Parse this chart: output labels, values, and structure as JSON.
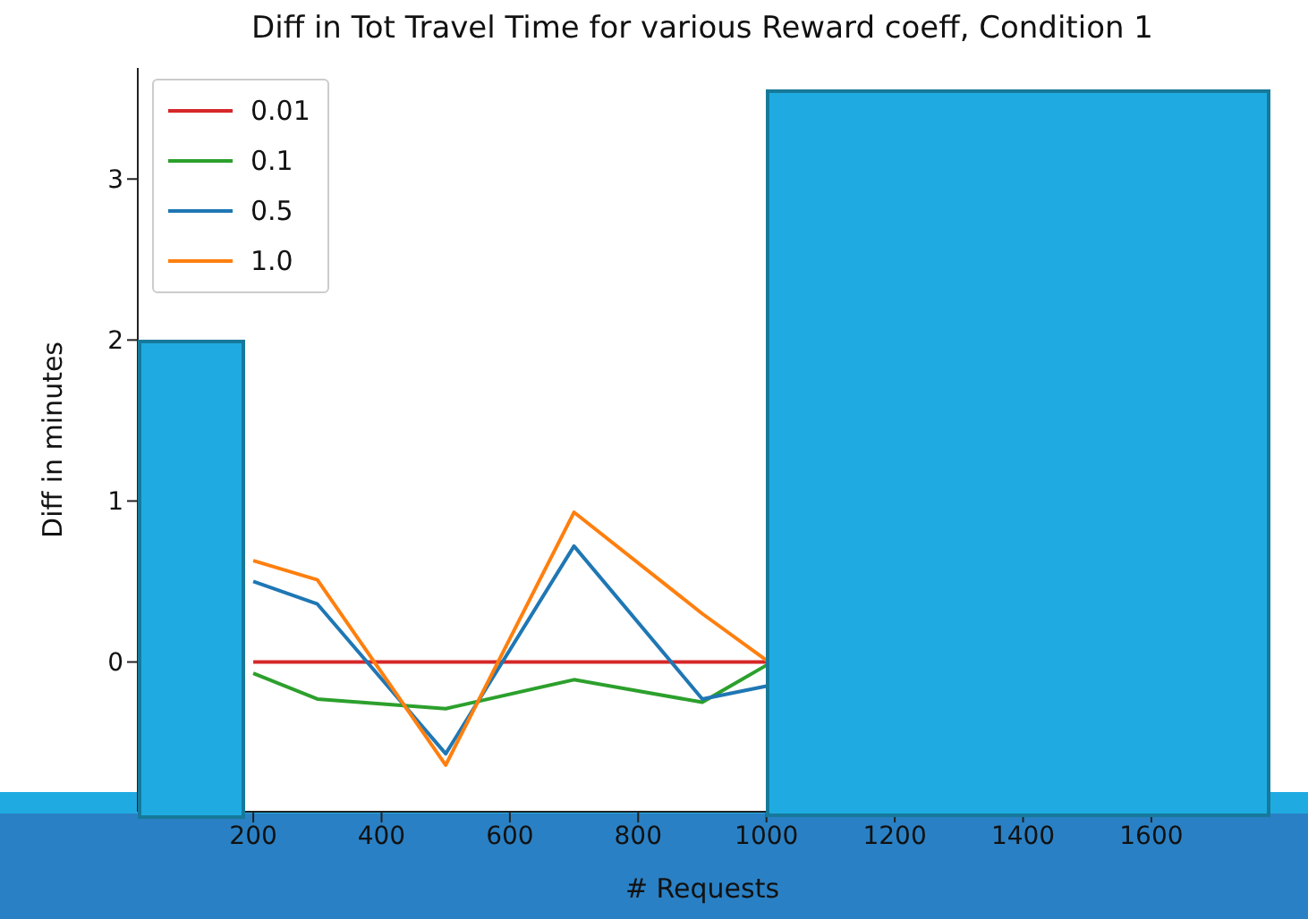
{
  "chart_data": {
    "type": "line",
    "title": "Diff in Tot Travel Time for various Reward coeff, Condition 1",
    "xlabel": "# Requests",
    "ylabel": "Diff in minutes",
    "x": [
      200,
      300,
      500,
      700,
      900,
      1000
    ],
    "series": [
      {
        "name": "0.01",
        "color": "#d62728",
        "values": [
          0,
          0,
          0,
          0,
          0,
          0
        ]
      },
      {
        "name": "0.1",
        "color": "#2ca02c",
        "values": [
          -0.07,
          -0.23,
          -0.29,
          -0.11,
          -0.25,
          -0.02
        ]
      },
      {
        "name": "0.5",
        "color": "#1f77b4",
        "values": [
          0.5,
          0.36,
          -0.57,
          0.72,
          -0.23,
          -0.15
        ]
      },
      {
        "name": "1.0",
        "color": "#ff7f0e",
        "values": [
          0.63,
          0.51,
          -0.64,
          0.93,
          0.3,
          0.01
        ]
      }
    ],
    "xlim": [
      20,
      1780
    ],
    "xticks": [
      200,
      400,
      600,
      800,
      1000,
      1200,
      1400,
      1600
    ],
    "ylim": [
      -0.93,
      3.69
    ],
    "yticks": [
      0,
      1,
      2,
      3
    ],
    "legend": "top left",
    "grid": false,
    "marker": "none",
    "line_style": "solid"
  }
}
